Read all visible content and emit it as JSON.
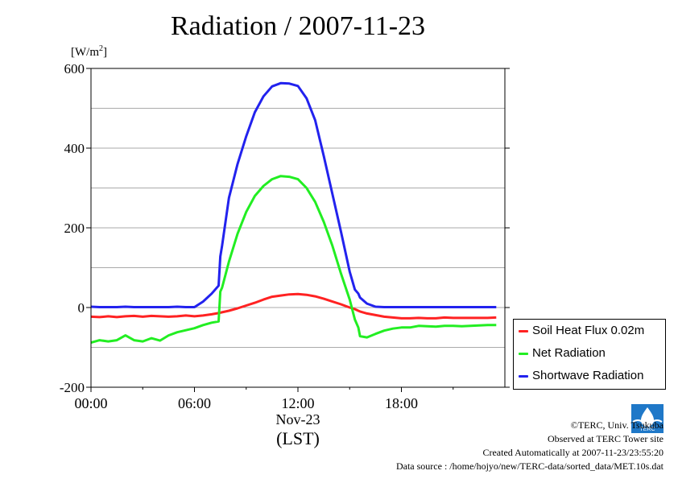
{
  "chart_data": {
    "type": "line",
    "title": "Radiation / 2007-11-23",
    "ylabel": "[W/m2]",
    "ylabel_main": "[W/m",
    "ylabel_sup": "2",
    "ylabel_close": "]",
    "xlabel_date": "Nov-23",
    "xlabel": "(LST)",
    "xlim": [
      0,
      24
    ],
    "ylim": [
      -200,
      600
    ],
    "grid": true,
    "legend_position": "right",
    "x_ticks": [
      {
        "value": 0,
        "label": "00:00"
      },
      {
        "value": 6,
        "label": "06:00"
      },
      {
        "value": 12,
        "label": "12:00"
      },
      {
        "value": 18,
        "label": "18:00"
      }
    ],
    "y_ticks": [
      {
        "value": -200,
        "label": "-200"
      },
      {
        "value": 0,
        "label": "0"
      },
      {
        "value": 200,
        "label": "200"
      },
      {
        "value": 400,
        "label": "400"
      },
      {
        "value": 600,
        "label": "600"
      }
    ],
    "x": [
      0,
      0.5,
      1,
      1.5,
      2,
      2.5,
      3,
      3.5,
      4,
      4.5,
      5,
      5.5,
      6,
      6.5,
      7,
      7.4,
      7.5,
      7.6,
      8,
      8.5,
      9,
      9.5,
      10,
      10.5,
      11,
      11.5,
      12,
      12.5,
      13,
      13.5,
      14,
      14.5,
      15,
      15.3,
      15.5,
      15.6,
      16,
      16.5,
      17,
      17.5,
      18,
      18.5,
      19,
      19.5,
      20,
      20.5,
      21,
      21.5,
      22,
      22.5,
      23,
      23.5
    ],
    "series": [
      {
        "name": "Soil Heat Flux 0.02m",
        "color": "#ff2222",
        "values": [
          -23,
          -24,
          -22,
          -24,
          -22,
          -21,
          -23,
          -21,
          -22,
          -23,
          -22,
          -20,
          -22,
          -20,
          -17,
          -14,
          -13,
          -12,
          -8,
          -2,
          5,
          12,
          20,
          27,
          30,
          33,
          34,
          32,
          28,
          22,
          15,
          8,
          0,
          -4,
          -8,
          -10,
          -15,
          -19,
          -23,
          -25,
          -27,
          -27,
          -26,
          -27,
          -27,
          -25,
          -26,
          -26,
          -26,
          -26,
          -26,
          -25
        ]
      },
      {
        "name": "Net Radiation",
        "color": "#22ee22",
        "values": [
          -88,
          -82,
          -85,
          -82,
          -70,
          -82,
          -85,
          -77,
          -83,
          -70,
          -62,
          -57,
          -52,
          -44,
          -38,
          -35,
          40,
          50,
          115,
          185,
          240,
          280,
          305,
          322,
          330,
          328,
          322,
          300,
          265,
          215,
          155,
          85,
          20,
          -30,
          -50,
          -72,
          -75,
          -66,
          -58,
          -53,
          -50,
          -50,
          -46,
          -47,
          -48,
          -46,
          -46,
          -47,
          -46,
          -45,
          -44,
          -44
        ]
      },
      {
        "name": "Shortwave Radiation",
        "color": "#2222ee",
        "values": [
          2,
          1,
          1,
          1,
          2,
          1,
          1,
          1,
          1,
          1,
          2,
          1,
          1,
          15,
          35,
          55,
          128,
          155,
          275,
          360,
          430,
          490,
          530,
          555,
          563,
          562,
          556,
          525,
          470,
          380,
          285,
          190,
          90,
          45,
          35,
          25,
          10,
          2,
          1,
          1,
          1,
          1,
          1,
          1,
          1,
          1,
          1,
          1,
          1,
          1,
          1,
          1
        ]
      }
    ]
  },
  "credits": {
    "copyright": "©TERC, Univ. Tsukuba",
    "site": "Observed at TERC Tower site",
    "created": "Created Automatically at 2007-11-23/23:55:20",
    "source": "Data source : /home/hojyo/new/TERC-data/sorted_data/MET.10s.dat"
  },
  "logo_text": "TERC"
}
